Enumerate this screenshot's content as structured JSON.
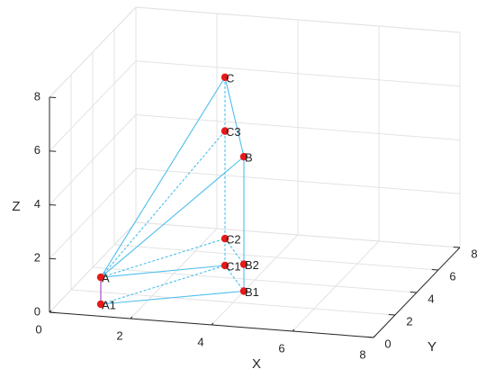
{
  "chart_data": {
    "type": "scatter3",
    "xlabel": "X",
    "ylabel": "Y",
    "zlabel": "Z",
    "labels": [
      "A1",
      "A",
      "B1",
      "B2",
      "B",
      "C1",
      "C2",
      "C3",
      "C"
    ],
    "x": [
      1,
      1,
      4,
      4,
      4,
      3,
      3,
      3,
      3
    ],
    "y": [
      1,
      1,
      3,
      3,
      3,
      5,
      5,
      5,
      5
    ],
    "z": [
      0,
      1,
      0,
      1,
      5,
      0,
      1,
      5,
      7
    ],
    "color": "#e8191a",
    "line_color": "#4dbeee",
    "riser_color": "#a040c0",
    "xlim": [
      0,
      8
    ],
    "ylim": [
      0,
      8
    ],
    "zlim": [
      0,
      8
    ],
    "xticks": [
      0,
      2,
      4,
      6,
      8
    ],
    "yticks": [
      0,
      2,
      4,
      6,
      8
    ],
    "zticks": [
      0,
      2,
      4,
      6,
      8
    ],
    "grid": true
  }
}
